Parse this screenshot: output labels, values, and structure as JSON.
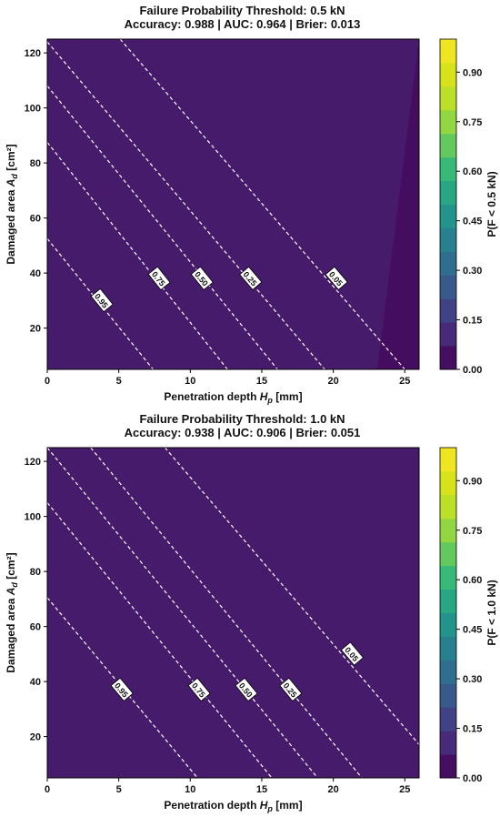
{
  "chart_data": [
    {
      "type": "heatmap",
      "subtype": "filled-contour",
      "title": "Failure Probability Threshold: 0.5 kN",
      "subtitle": "Accuracy: 0.988 | AUC: 0.964 | Brier: 0.013",
      "xlabel": "Penetration depth",
      "xlabel_symbol": "H",
      "xlabel_sub": "p",
      "xlabel_unit": "[mm]",
      "ylabel": "Damaged area",
      "ylabel_symbol": "A",
      "ylabel_sub": "d",
      "ylabel_unit": "[cm²]",
      "xlim": [
        0,
        26
      ],
      "ylim": [
        5,
        125
      ],
      "xticks": [
        0,
        5,
        10,
        15,
        20,
        25
      ],
      "yticks": [
        20,
        40,
        60,
        80,
        100,
        120
      ],
      "colorbar_label": "P(F < 0.5 kN)",
      "colorbar_range": [
        0,
        1
      ],
      "colorbar_ticks": [
        "0.00",
        "0.15",
        "0.30",
        "0.45",
        "0.60",
        "0.75",
        "0.90"
      ],
      "colormap": "viridis",
      "contour_lines": [
        {
          "level": "0.95",
          "a_intercept": 52.5,
          "x_intercept": 7.4,
          "label_at": [
            3.8,
            30
          ]
        },
        {
          "level": "0.75",
          "a_intercept": 87.5,
          "x_intercept": 12.6,
          "label_at": [
            7.8,
            38
          ]
        },
        {
          "level": "0.50",
          "a_intercept": 108,
          "x_intercept": 16.1,
          "label_at": [
            10.8,
            38
          ]
        },
        {
          "level": "0.25",
          "a_intercept": 124,
          "x_intercept": 19.4,
          "label_at": [
            14.2,
            38
          ]
        },
        {
          "level": "0.05",
          "a_intercept": 157,
          "x_intercept": 25,
          "label_at": [
            20.2,
            38
          ]
        }
      ]
    },
    {
      "type": "heatmap",
      "subtype": "filled-contour",
      "title": "Failure Probability Threshold: 1.0 kN",
      "subtitle": "Accuracy: 0.938 | AUC: 0.906 | Brier: 0.051",
      "xlabel": "Penetration depth",
      "xlabel_symbol": "H",
      "xlabel_sub": "p",
      "xlabel_unit": "[mm]",
      "ylabel": "Damaged area",
      "ylabel_symbol": "A",
      "ylabel_sub": "d",
      "ylabel_unit": "[cm²]",
      "xlim": [
        0,
        26
      ],
      "ylim": [
        5,
        125
      ],
      "xticks": [
        0,
        5,
        10,
        15,
        20,
        25
      ],
      "yticks": [
        20,
        40,
        60,
        80,
        100,
        120
      ],
      "colorbar_label": "P(F < 1.0 kN)",
      "colorbar_range": [
        0,
        1
      ],
      "colorbar_ticks": [
        "0.00",
        "0.15",
        "0.30",
        "0.45",
        "0.60",
        "0.75",
        "0.90"
      ],
      "colormap": "viridis",
      "contour_lines": [
        {
          "level": "0.95",
          "a_intercept": 70.5,
          "x_intercept": 10.5,
          "label_at": [
            5.2,
            37
          ]
        },
        {
          "level": "0.75",
          "a_intercept": 105,
          "x_intercept": 15.7,
          "label_at": [
            10.6,
            37
          ]
        },
        {
          "level": "0.50",
          "a_intercept": 125,
          "x_intercept": 18.9,
          "label_at": [
            13.9,
            37
          ]
        },
        {
          "level": "0.25",
          "a_intercept": 145,
          "x_intercept": 22,
          "label_at": [
            17,
            37
          ]
        },
        {
          "level": "0.05",
          "a_intercept": 177,
          "x_intercept": 28,
          "label_at": [
            21.3,
            50
          ]
        }
      ]
    }
  ]
}
